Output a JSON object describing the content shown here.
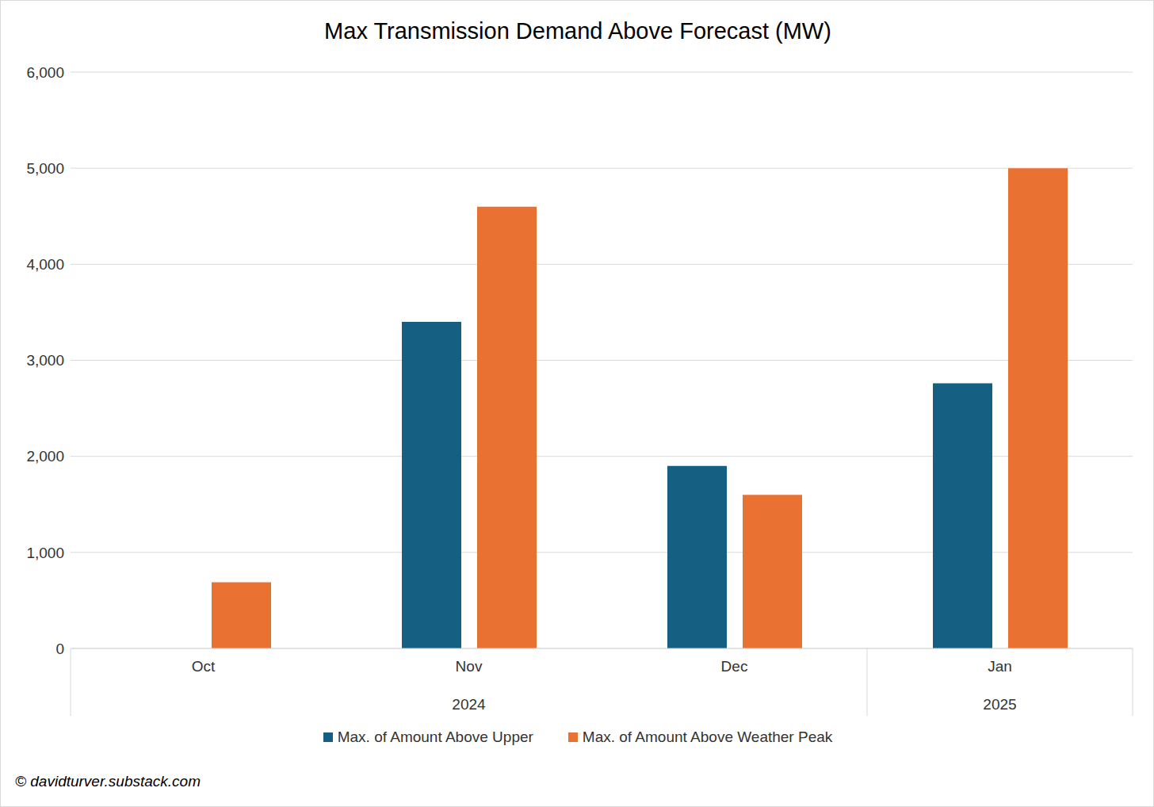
{
  "chart_data": {
    "type": "bar",
    "title": "Max Transmission Demand Above Forecast (MW)",
    "categories": [
      "Oct",
      "Nov",
      "Dec",
      "Jan"
    ],
    "category_groups": [
      {
        "label": "2024",
        "categories": [
          "Oct",
          "Nov",
          "Dec"
        ]
      },
      {
        "label": "2025",
        "categories": [
          "Jan"
        ]
      }
    ],
    "series": [
      {
        "name": "Max. of Amount Above Upper",
        "color": "#156082",
        "values": [
          null,
          3400,
          1900,
          2760
        ]
      },
      {
        "name": "Max. of Amount Above Weather Peak",
        "color": "#E97132",
        "values": [
          690,
          4600,
          1600,
          5000
        ]
      }
    ],
    "ylim": [
      0,
      6000
    ],
    "yticks": [
      0,
      {
        "value": 1000,
        "label": "1,000"
      },
      {
        "value": 2000,
        "label": "2,000"
      },
      {
        "value": 3000,
        "label": "3,000"
      },
      {
        "value": 4000,
        "label": "4,000"
      },
      {
        "value": 5000,
        "label": "5,000"
      },
      {
        "value": 6000,
        "label": "6,000"
      }
    ],
    "grid": true,
    "legend": "bottom",
    "annotations": [
      "© davidturver.substack.com"
    ]
  }
}
